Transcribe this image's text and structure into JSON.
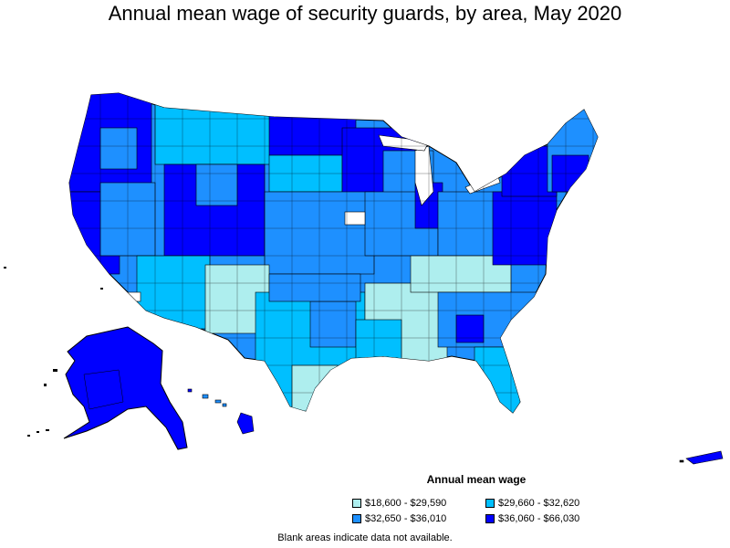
{
  "title": "Annual mean wage of security guards, by area, May 2020",
  "legend": {
    "title": "Annual mean wage",
    "items": [
      {
        "label": "$18,600 - $29,590",
        "color": "#aeeeee"
      },
      {
        "label": "$29,660 - $32,620",
        "color": "#00bfff"
      },
      {
        "label": "$32,650 - $36,010",
        "color": "#1e90ff"
      },
      {
        "label": "$36,060 - $66,030",
        "color": "#0000ff"
      }
    ]
  },
  "note": "Blank areas indicate data not available.",
  "colors": {
    "outline": "#000000",
    "background": "#ffffff"
  }
}
